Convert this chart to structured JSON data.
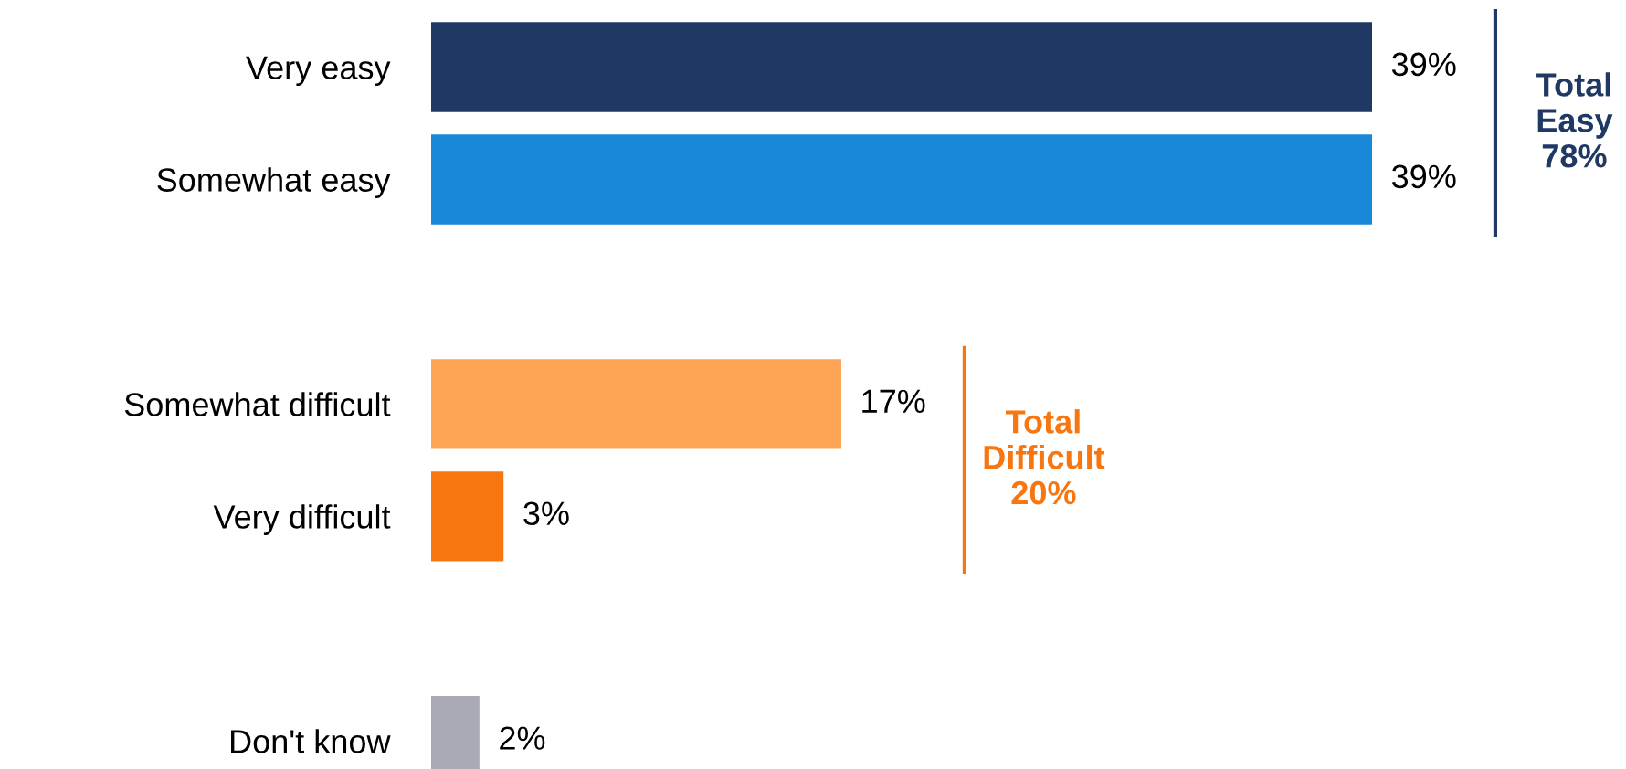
{
  "chart_data": {
    "type": "bar",
    "orientation": "horizontal",
    "categories": [
      "Very easy",
      "Somewhat easy",
      null,
      "Somewhat difficult",
      "Very difficult",
      null,
      "Don't know"
    ],
    "values": [
      39,
      39,
      null,
      17,
      3,
      null,
      2
    ],
    "colors": [
      "#1f3864",
      "#1a88d8",
      "#ffffff",
      "#fda455",
      "#f7760f",
      "#ffffff",
      "#a9aab6"
    ],
    "value_labels": [
      "39%",
      "39%",
      null,
      "17%",
      "3%",
      null,
      "2%"
    ],
    "annotations": [
      "Total\nEasy\n78%",
      "Total\nDifficult\n20%"
    ],
    "grid": false,
    "legend": false
  }
}
